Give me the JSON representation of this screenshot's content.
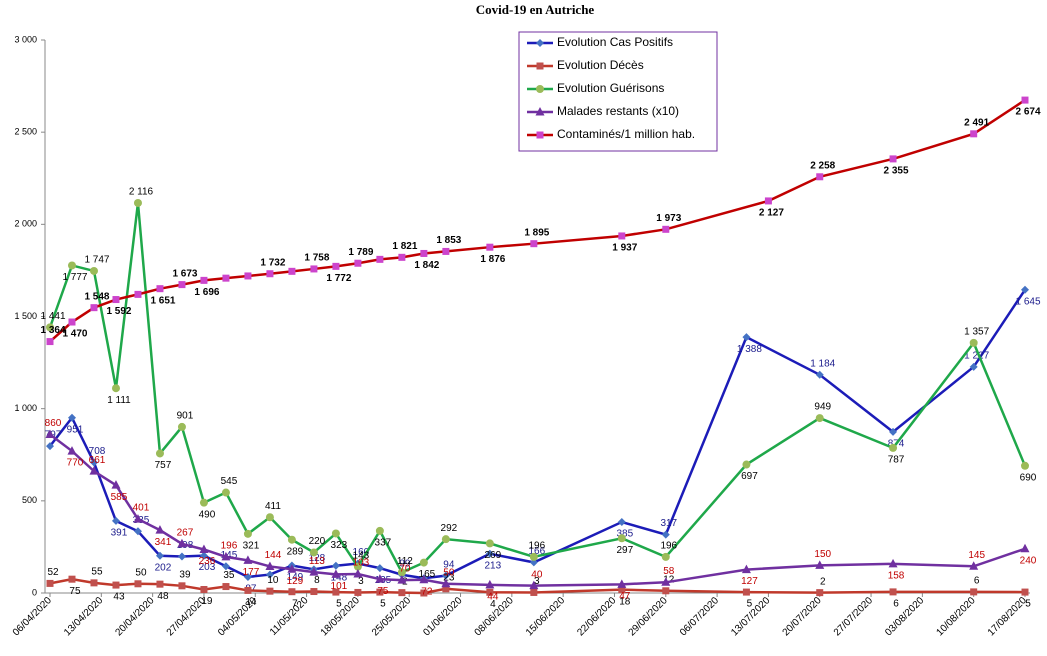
{
  "chart_data": {
    "type": "line",
    "title": "Covid-19 en Autriche",
    "legend": "upper center",
    "grid": false,
    "ylim": [
      0,
      3000
    ],
    "yticks": [
      0,
      500,
      {
        "value": 1000,
        "label": "1 000"
      },
      {
        "value": 1500,
        "label": "1 500"
      },
      {
        "value": 2000,
        "label": "2 000"
      },
      {
        "value": 2500,
        "label": "2 500"
      },
      {
        "value": 3000,
        "label": "3 000"
      }
    ],
    "xlim": [
      "06/04/2020",
      "17/08/2020"
    ],
    "xticks": [
      "06/04/2020",
      "13/04/2020",
      "20/04/2020",
      "27/04/2020",
      "04/05/2020",
      "11/05/2020",
      "18/05/2020",
      "25/05/2020",
      "01/06/2020",
      "08/06/2020",
      "15/06/2020",
      "22/06/2020",
      "29/06/2020",
      "06/07/2020",
      "13/07/2020",
      "20/07/2020",
      "27/07/2020",
      "03/08/2020",
      "10/08/2020",
      "17/08/2020"
    ],
    "series": [
      {
        "name": "Evolution Cas Positifs",
        "color": "#1c1cb8",
        "marker_color": "#4472c4",
        "marker": "diamond",
        "label_color": "#1c1c8c",
        "x": [
          "06/04/2020",
          "09/04/2020",
          "12/04/2020",
          "15/04/2020",
          "18/04/2020",
          "21/04/2020",
          "24/04/2020",
          "27/04/2020",
          "30/04/2020",
          "03/05/2020",
          "06/05/2020",
          "09/05/2020",
          "12/05/2020",
          "15/05/2020",
          "18/05/2020",
          "21/05/2020",
          "24/05/2020",
          "27/05/2020",
          "30/05/2020",
          "05/06/2020",
          "11/06/2020",
          "23/06/2020",
          "29/06/2020",
          "10/07/2020",
          "20/07/2020",
          "30/07/2020",
          "10/08/2020",
          "17/08/2020"
        ],
        "values": [
          797,
          951,
          708,
          391,
          335,
          202,
          198,
          203,
          145,
          87,
          100,
          149,
          128,
          148,
          160,
          135,
          99,
          80,
          94,
          213,
          166,
          385,
          317,
          1388,
          1184,
          874,
          1227,
          1645
        ],
        "value_labels": [
          "797",
          "951",
          "708",
          "391",
          "335",
          "202",
          "198",
          "203",
          "145",
          "87",
          null,
          "149",
          "128",
          "148",
          "160",
          "135",
          "99",
          null,
          "94",
          "213",
          "166",
          "385",
          "317",
          "1 388",
          "1 184",
          "874",
          "1 227",
          "1 645"
        ]
      },
      {
        "name": "Evolution Décès",
        "color": "#c0392b",
        "marker_color": "#c0504d",
        "marker": "square",
        "label_color": "#000000",
        "x": [
          "06/04/2020",
          "09/04/2020",
          "12/04/2020",
          "15/04/2020",
          "18/04/2020",
          "21/04/2020",
          "24/04/2020",
          "27/04/2020",
          "30/04/2020",
          "03/05/2020",
          "06/05/2020",
          "09/05/2020",
          "12/05/2020",
          "15/05/2020",
          "18/05/2020",
          "21/05/2020",
          "24/05/2020",
          "27/05/2020",
          "30/05/2020",
          "05/06/2020",
          "11/06/2020",
          "23/06/2020",
          "29/06/2020",
          "10/07/2020",
          "20/07/2020",
          "30/07/2020",
          "10/08/2020",
          "17/08/2020"
        ],
        "values": [
          52,
          75,
          55,
          43,
          50,
          48,
          39,
          19,
          35,
          14,
          10,
          7,
          8,
          5,
          3,
          5,
          2,
          0,
          23,
          4,
          3,
          18,
          12,
          5,
          2,
          6,
          6,
          5
        ],
        "value_labels": [
          "52",
          "75",
          "55",
          "43",
          "50",
          "48",
          "39",
          "19",
          "35",
          "14",
          "10",
          "7",
          "8",
          "5",
          "3",
          "5",
          "2",
          null,
          "23",
          "4",
          "3",
          "18",
          "12",
          "5",
          "2",
          "6",
          "6",
          "5"
        ]
      },
      {
        "name": "Evolution Guérisons",
        "color": "#1fa84a",
        "marker_color": "#9bbb59",
        "marker": "circle",
        "label_color": "#000000",
        "x": [
          "06/04/2020",
          "09/04/2020",
          "12/04/2020",
          "15/04/2020",
          "18/04/2020",
          "21/04/2020",
          "24/04/2020",
          "27/04/2020",
          "30/04/2020",
          "03/05/2020",
          "06/05/2020",
          "09/05/2020",
          "12/05/2020",
          "15/05/2020",
          "18/05/2020",
          "21/05/2020",
          "24/05/2020",
          "27/05/2020",
          "30/05/2020",
          "05/06/2020",
          "11/06/2020",
          "23/06/2020",
          "29/06/2020",
          "10/07/2020",
          "20/07/2020",
          "30/07/2020",
          "10/08/2020",
          "17/08/2020"
        ],
        "values": [
          1441,
          1777,
          1747,
          1111,
          2116,
          757,
          901,
          490,
          545,
          321,
          411,
          289,
          220,
          323,
          143,
          337,
          112,
          165,
          292,
          269,
          196,
          297,
          196,
          697,
          949,
          787,
          1357,
          690
        ],
        "value_labels": [
          "1 441",
          "1 777",
          "1 747",
          "1 111",
          "2 116",
          "757",
          "901",
          "490",
          "545",
          "321",
          "411",
          "289",
          "220",
          "323",
          "143",
          "337",
          "112",
          "165",
          "292",
          "269",
          "196",
          "297",
          "196",
          "697",
          "949",
          "787",
          "1 357",
          "690"
        ]
      },
      {
        "name": "Malades restants (x10)",
        "color": "#7030a0",
        "marker_color": "#7030a0",
        "marker": "triangle",
        "label_color": "#c00000",
        "x": [
          "06/04/2020",
          "09/04/2020",
          "12/04/2020",
          "15/04/2020",
          "18/04/2020",
          "21/04/2020",
          "24/04/2020",
          "27/04/2020",
          "30/04/2020",
          "03/05/2020",
          "06/05/2020",
          "09/05/2020",
          "12/05/2020",
          "15/05/2020",
          "18/05/2020",
          "21/05/2020",
          "24/05/2020",
          "27/05/2020",
          "30/05/2020",
          "05/06/2020",
          "11/06/2020",
          "23/06/2020",
          "29/06/2020",
          "10/07/2020",
          "20/07/2020",
          "30/07/2020",
          "10/08/2020",
          "17/08/2020"
        ],
        "values": [
          860,
          770,
          661,
          585,
          401,
          341,
          267,
          236,
          196,
          177,
          144,
          129,
          113,
          101,
          103,
          75,
          70,
          72,
          50,
          44,
          40,
          47,
          58,
          127,
          150,
          158,
          145,
          240
        ]
      },
      {
        "name": "Contaminés/1 million hab.",
        "color": "#c00000",
        "marker_color": "#cc44cc",
        "marker": "square",
        "label_color": "#000000",
        "label_bold": true,
        "x": [
          "06/04/2020",
          "09/04/2020",
          "12/04/2020",
          "15/04/2020",
          "18/04/2020",
          "21/04/2020",
          "24/04/2020",
          "27/04/2020",
          "30/04/2020",
          "03/05/2020",
          "06/05/2020",
          "09/05/2020",
          "12/05/2020",
          "15/05/2020",
          "18/05/2020",
          "21/05/2020",
          "24/05/2020",
          "27/05/2020",
          "30/05/2020",
          "05/06/2020",
          "11/06/2020",
          "23/06/2020",
          "29/06/2020",
          "13/07/2020",
          "20/07/2020",
          "30/07/2020",
          "10/08/2020",
          "17/08/2020"
        ],
        "values": [
          1364,
          1470,
          1548,
          1592,
          1620,
          1651,
          1673,
          1696,
          1708,
          1720,
          1732,
          1745,
          1758,
          1772,
          1789,
          1810,
          1821,
          1842,
          1853,
          1876,
          1895,
          1937,
          1973,
          2127,
          2258,
          2355,
          2491,
          2674
        ],
        "value_labels": [
          "1 364",
          "1 470",
          "1 548",
          "1 592",
          null,
          "1 651",
          "1 673",
          "1 696",
          null,
          null,
          "1 732",
          null,
          "1 758",
          "1 772",
          "1 789",
          null,
          "1 821",
          "1 842",
          "1 853",
          "1 876",
          "1 895",
          "1 937",
          "1 973",
          "2 127",
          "2 258",
          "2 355",
          "2 491",
          "2 674"
        ]
      }
    ]
  }
}
